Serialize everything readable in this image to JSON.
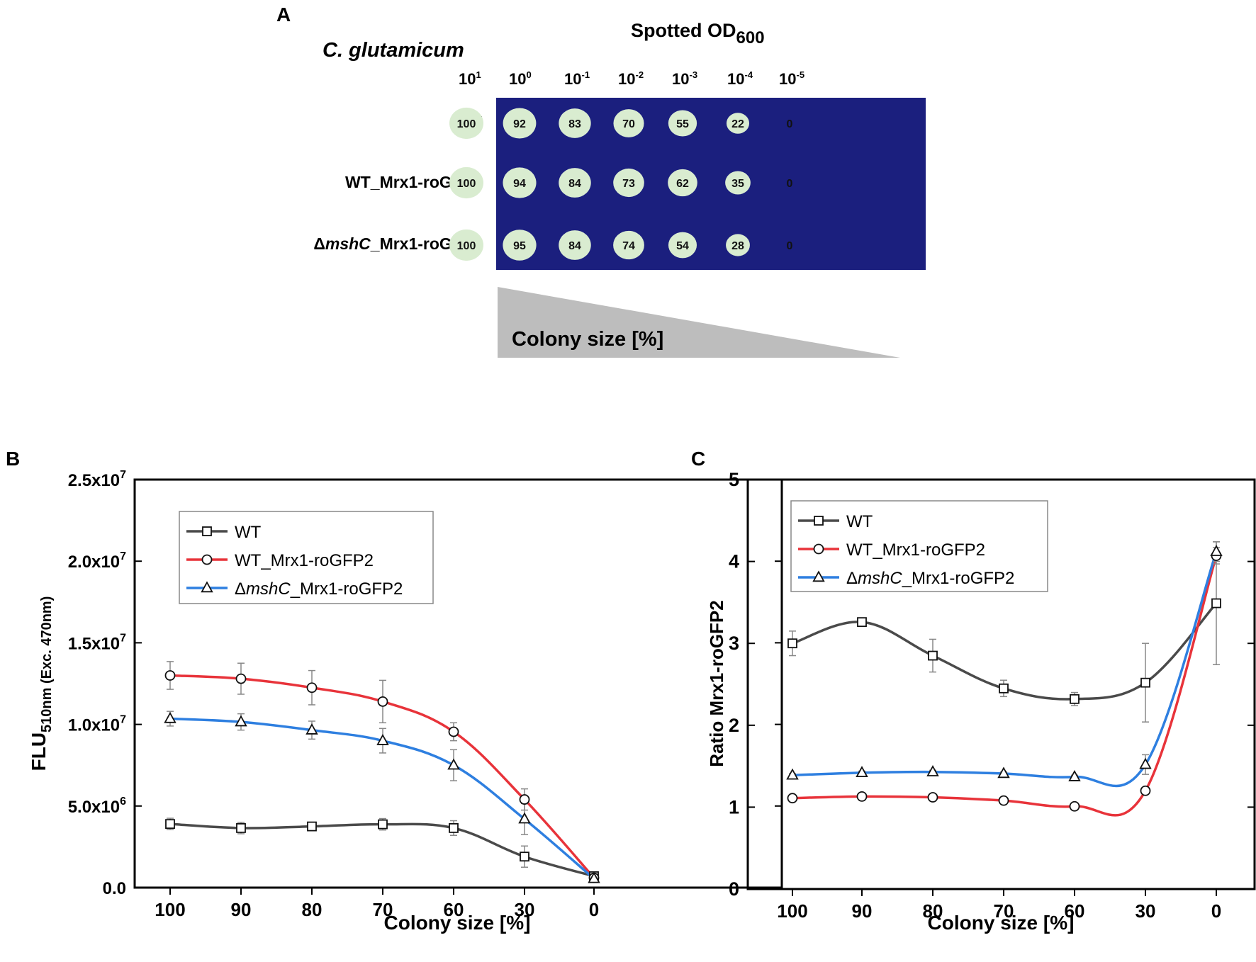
{
  "panel_a": {
    "letter": "A",
    "organism": "C. glutamicum",
    "spotted_title": "Spotted OD",
    "spotted_sub": "600",
    "dilution_base": "10",
    "dilution_exponents": [
      "1",
      "0",
      "-1",
      "-2",
      "-3",
      "-4",
      "-5"
    ],
    "strains": [
      {
        "prefix": "",
        "italic": "",
        "suffix": "WT",
        "values": [
          "100",
          "92",
          "83",
          "70",
          "55",
          "22",
          "0"
        ]
      },
      {
        "prefix": "",
        "italic": "",
        "suffix": "WT_Mrx1-roGFP2",
        "values": [
          "100",
          "94",
          "84",
          "73",
          "62",
          "35",
          "0"
        ]
      },
      {
        "prefix": "Δ",
        "italic": "mshC",
        "suffix": "_Mrx1-roGFP2",
        "values": [
          "100",
          "95",
          "84",
          "74",
          "54",
          "28",
          "0"
        ]
      }
    ],
    "colony_size_label": "Colony size [%]",
    "colors": {
      "plate": "#1b1f7e",
      "colony": "#d9ecd0",
      "wedge": "#bdbdbd"
    }
  },
  "legend": [
    {
      "key": "wt",
      "prefix": "",
      "italic": "",
      "suffix": "WT",
      "color": "#4a4a4a",
      "marker": "square"
    },
    {
      "key": "wtmrx",
      "prefix": "",
      "italic": "",
      "suffix": "WT_Mrx1-roGFP2",
      "color": "#e8333a",
      "marker": "circle"
    },
    {
      "key": "mshc",
      "prefix": "Δ",
      "italic": "mshC",
      "suffix": "_Mrx1-roGFP2",
      "color": "#2e7fe0",
      "marker": "triangle"
    }
  ],
  "chart_data": [
    {
      "panel": "B",
      "type": "line",
      "categories": [
        "100",
        "90",
        "80",
        "70",
        "60",
        "30",
        "0"
      ],
      "xlabel": "Colony size [%]",
      "ylabel_main": "FLU",
      "ylabel_sub": "510nm (Exc. 470nm)",
      "ylim": [
        0,
        25000000
      ],
      "yticks": [
        {
          "v": 0,
          "label": "0.0"
        },
        {
          "v": 5000000,
          "label": "5.0x10",
          "exp": "6"
        },
        {
          "v": 10000000,
          "label": "1.0x10",
          "exp": "7"
        },
        {
          "v": 15000000,
          "label": "1.5x10",
          "exp": "7"
        },
        {
          "v": 20000000,
          "label": "2.0x10",
          "exp": "7"
        },
        {
          "v": 25000000,
          "label": "2.5x10",
          "exp": "7"
        }
      ],
      "legend_position": "top-left",
      "series": [
        {
          "key": "wt",
          "values": [
            3900000,
            3650000,
            3750000,
            3880000,
            3650000,
            1900000,
            700000
          ],
          "errors": [
            350000,
            350000,
            200000,
            350000,
            450000,
            650000,
            150000
          ]
        },
        {
          "key": "wtmrx",
          "values": [
            13000000,
            12800000,
            12250000,
            11400000,
            9550000,
            5400000,
            600000
          ],
          "errors": [
            850000,
            950000,
            1050000,
            1300000,
            550000,
            650000,
            100000
          ]
        },
        {
          "key": "mshc",
          "values": [
            10350000,
            10150000,
            9650000,
            9000000,
            7500000,
            4200000,
            550000
          ],
          "errors": [
            450000,
            500000,
            550000,
            750000,
            950000,
            950000,
            100000
          ]
        }
      ]
    },
    {
      "panel": "C",
      "type": "line",
      "categories": [
        "100",
        "90",
        "80",
        "70",
        "60",
        "30",
        "0"
      ],
      "xlabel": "Colony size [%]",
      "ylabel_main": "Ratio Mrx1-roGFP2",
      "ylabel_sub": "",
      "ylim": [
        0,
        5
      ],
      "yticks": [
        {
          "v": 0,
          "label": "0"
        },
        {
          "v": 1,
          "label": "1"
        },
        {
          "v": 2,
          "label": "2"
        },
        {
          "v": 3,
          "label": "3"
        },
        {
          "v": 4,
          "label": "4"
        },
        {
          "v": 5,
          "label": "5"
        }
      ],
      "legend_position": "top-left",
      "series": [
        {
          "key": "wt",
          "values": [
            3.0,
            3.26,
            2.85,
            2.45,
            2.32,
            2.52,
            3.49
          ],
          "errors": [
            0.15,
            0.03,
            0.2,
            0.1,
            0.08,
            0.48,
            0.75
          ]
        },
        {
          "key": "wtmrx",
          "values": [
            1.11,
            1.13,
            1.12,
            1.08,
            1.01,
            1.2,
            4.07
          ],
          "errors": [
            0.02,
            0.02,
            0.02,
            0.02,
            0.02,
            0.03,
            0.1
          ]
        },
        {
          "key": "mshc",
          "values": [
            1.39,
            1.42,
            1.43,
            1.41,
            1.37,
            1.52,
            4.12
          ],
          "errors": [
            0.02,
            0.02,
            0.02,
            0.02,
            0.02,
            0.12,
            0.12
          ]
        }
      ]
    }
  ]
}
